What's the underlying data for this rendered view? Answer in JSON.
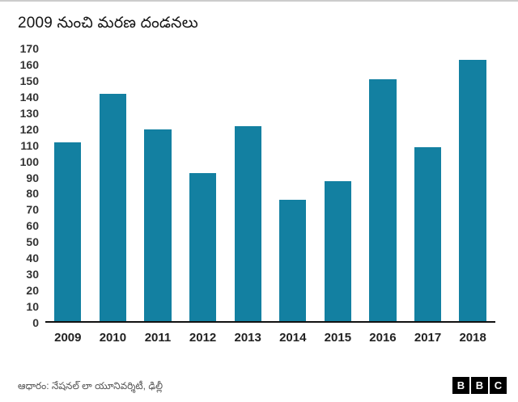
{
  "footer": {
    "source": "ఆధారం: నేషనల్ లా యూనివర్శిటీ, ఢిల్లీ",
    "logo_letters": [
      "B",
      "B",
      "C"
    ]
  },
  "chart_data": {
    "type": "bar",
    "title": "2009 నుంచి మరణ దండనలు",
    "categories": [
      "2009",
      "2010",
      "2011",
      "2012",
      "2013",
      "2014",
      "2015",
      "2016",
      "2017",
      "2018"
    ],
    "values": [
      111,
      141,
      119,
      92,
      121,
      75,
      87,
      150,
      108,
      162
    ],
    "xlabel": "",
    "ylabel": "",
    "ylim": [
      0,
      170
    ],
    "ytick_step": 10,
    "bar_color": "#1380A1",
    "grid": false,
    "legend_position": "none"
  }
}
